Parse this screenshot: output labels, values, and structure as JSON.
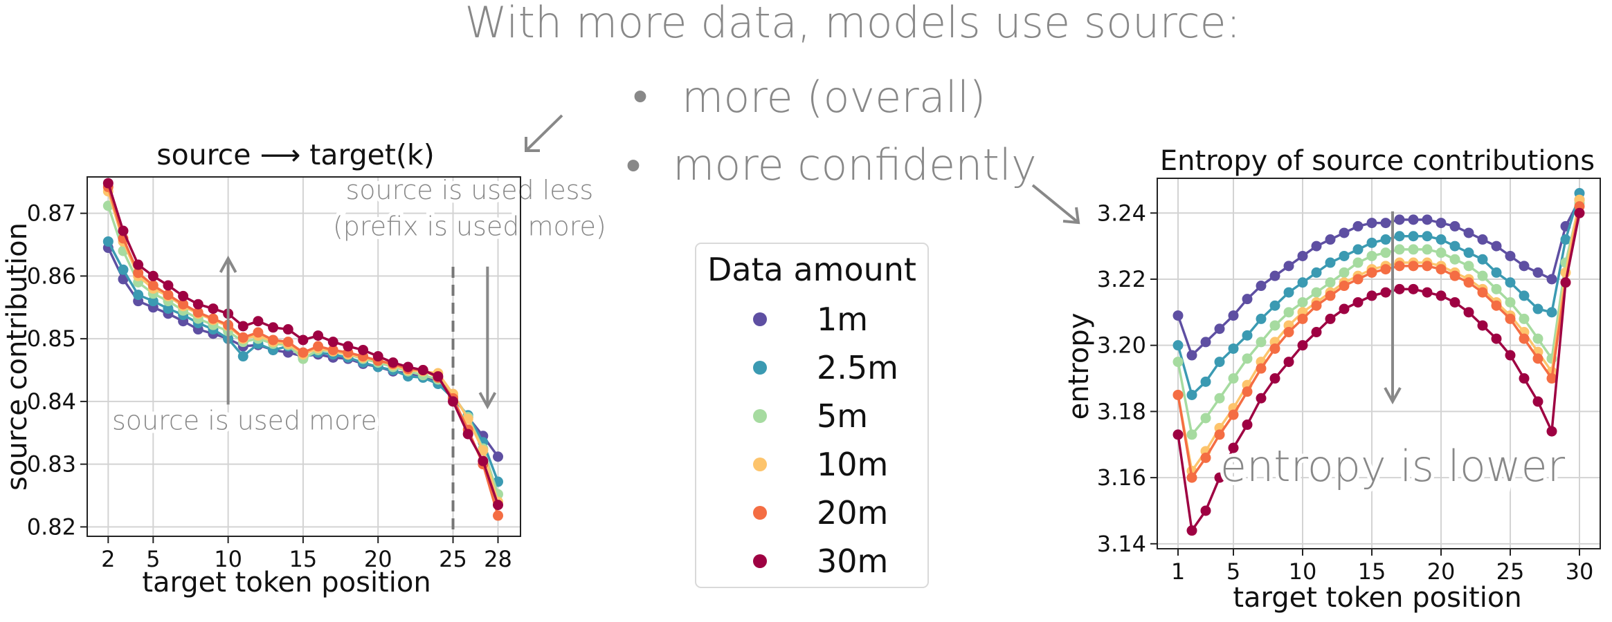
{
  "slide": {
    "headline": "With more data, models use source:",
    "bullets": [
      "more (overall)",
      "more confidently"
    ]
  },
  "legend": {
    "title": "Data amount",
    "entries": [
      {
        "label": "1m",
        "color": "#5E4FA2"
      },
      {
        "label": "2.5m",
        "color": "#3B9AB2"
      },
      {
        "label": "5m",
        "color": "#A6DBA0"
      },
      {
        "label": "10m",
        "color": "#FDC46C"
      },
      {
        "label": "20m",
        "color": "#F46D43"
      },
      {
        "label": "30m",
        "color": "#9E0142"
      }
    ]
  },
  "chart_data": [
    {
      "type": "line",
      "title": "source ⟶ target(k)",
      "xlabel": "target token position",
      "ylabel": "source contribution",
      "xticks": [
        2,
        5,
        10,
        15,
        20,
        25,
        28
      ],
      "yticks": [
        0.82,
        0.83,
        0.84,
        0.85,
        0.86,
        0.87
      ],
      "xlim": [
        0.6,
        29.5
      ],
      "ylim": [
        0.8185,
        0.8758
      ],
      "grid": true,
      "x": [
        2,
        3,
        4,
        5,
        6,
        7,
        8,
        9,
        10,
        11,
        12,
        13,
        14,
        15,
        16,
        17,
        18,
        19,
        20,
        21,
        22,
        23,
        24,
        25,
        26,
        27,
        28
      ],
      "series": [
        {
          "name": "1m",
          "color": "#5E4FA2",
          "values": [
            0.8645,
            0.8595,
            0.856,
            0.855,
            0.854,
            0.8528,
            0.8515,
            0.8508,
            0.85,
            0.8488,
            0.849,
            0.8482,
            0.8478,
            0.8472,
            0.8475,
            0.847,
            0.8468,
            0.846,
            0.8455,
            0.8448,
            0.8445,
            0.844,
            0.843,
            0.841,
            0.8375,
            0.8345,
            0.8312
          ]
        },
        {
          "name": "2.5m",
          "color": "#3B9AB2",
          "values": [
            0.8655,
            0.861,
            0.857,
            0.856,
            0.8548,
            0.8538,
            0.8525,
            0.8515,
            0.85,
            0.8472,
            0.8492,
            0.8482,
            0.8488,
            0.847,
            0.8478,
            0.8475,
            0.847,
            0.8462,
            0.8455,
            0.845,
            0.844,
            0.8438,
            0.8428,
            0.8405,
            0.8378,
            0.8335,
            0.8272
          ]
        },
        {
          "name": "5m",
          "color": "#A6DBA0",
          "values": [
            0.8712,
            0.864,
            0.859,
            0.8572,
            0.856,
            0.8545,
            0.8532,
            0.8522,
            0.8512,
            0.8495,
            0.85,
            0.8492,
            0.849,
            0.8468,
            0.8482,
            0.848,
            0.8475,
            0.8468,
            0.8462,
            0.8455,
            0.8448,
            0.8442,
            0.8435,
            0.841,
            0.8375,
            0.8325,
            0.8252
          ]
        },
        {
          "name": "10m",
          "color": "#FDC46C",
          "values": [
            0.8735,
            0.8655,
            0.86,
            0.858,
            0.8568,
            0.8552,
            0.854,
            0.853,
            0.852,
            0.85,
            0.8505,
            0.8495,
            0.8492,
            0.8475,
            0.8485,
            0.848,
            0.8475,
            0.847,
            0.8465,
            0.8458,
            0.845,
            0.8448,
            0.8445,
            0.8412,
            0.8372,
            0.8322,
            0.824
          ]
        },
        {
          "name": "20m",
          "color": "#F46D43",
          "values": [
            0.8742,
            0.866,
            0.8605,
            0.8585,
            0.857,
            0.8555,
            0.8542,
            0.8532,
            0.8522,
            0.8502,
            0.851,
            0.8498,
            0.8495,
            0.8478,
            0.8488,
            0.8482,
            0.8478,
            0.8472,
            0.8465,
            0.846,
            0.8452,
            0.845,
            0.8438,
            0.8405,
            0.8355,
            0.83,
            0.8218
          ]
        },
        {
          "name": "30m",
          "color": "#9E0142",
          "values": [
            0.8748,
            0.8672,
            0.8618,
            0.86,
            0.8585,
            0.8568,
            0.8555,
            0.8548,
            0.854,
            0.852,
            0.8528,
            0.8518,
            0.8515,
            0.8498,
            0.8505,
            0.8495,
            0.8488,
            0.8482,
            0.8472,
            0.8462,
            0.8455,
            0.845,
            0.844,
            0.84,
            0.8348,
            0.8305,
            0.8235
          ]
        }
      ],
      "vline": {
        "x": 25,
        "style": "dashed"
      },
      "annotations": [
        {
          "text": "source is used more",
          "x": 11.2,
          "y": 0.8355,
          "arrow": {
            "from": [
              10,
              0.8395
            ],
            "to": [
              10,
              0.8628
            ]
          }
        },
        {
          "text": "source is used less",
          "x": 26.1,
          "y": 0.8723
        },
        {
          "text": "(prefix is used more)",
          "x": 26.1,
          "y": 0.8665
        },
        {
          "arrow": {
            "from": [
              27.3,
              0.8615
            ],
            "to": [
              27.3,
              0.8392
            ]
          }
        }
      ]
    },
    {
      "type": "line",
      "title": "Entropy of source contributions",
      "xlabel": "target token position",
      "ylabel": "entropy",
      "xticks": [
        1,
        5,
        10,
        15,
        20,
        25,
        30
      ],
      "yticks": [
        3.14,
        3.16,
        3.18,
        3.2,
        3.22,
        3.24
      ],
      "xlim": [
        -0.5,
        31.5
      ],
      "ylim": [
        3.1385,
        3.2505
      ],
      "grid": true,
      "x": [
        1,
        2,
        3,
        4,
        5,
        6,
        7,
        8,
        9,
        10,
        11,
        12,
        13,
        14,
        15,
        16,
        17,
        18,
        19,
        20,
        21,
        22,
        23,
        24,
        25,
        26,
        27,
        28,
        29,
        30
      ],
      "series": [
        {
          "name": "1m",
          "color": "#5E4FA2",
          "values": [
            3.209,
            3.197,
            3.201,
            3.205,
            3.209,
            3.214,
            3.218,
            3.221,
            3.224,
            3.227,
            3.23,
            3.232,
            3.234,
            3.236,
            3.237,
            3.237,
            3.238,
            3.238,
            3.238,
            3.237,
            3.236,
            3.234,
            3.232,
            3.23,
            3.227,
            3.224,
            3.222,
            3.22,
            3.236,
            3.244
          ]
        },
        {
          "name": "2.5m",
          "color": "#3B9AB2",
          "values": [
            3.2,
            3.185,
            3.189,
            3.195,
            3.199,
            3.203,
            3.208,
            3.212,
            3.216,
            3.219,
            3.222,
            3.225,
            3.227,
            3.229,
            3.231,
            3.232,
            3.233,
            3.233,
            3.233,
            3.232,
            3.23,
            3.228,
            3.226,
            3.222,
            3.219,
            3.215,
            3.211,
            3.21,
            3.232,
            3.246
          ]
        },
        {
          "name": "5m",
          "color": "#A6DBA0",
          "values": [
            3.195,
            3.173,
            3.178,
            3.184,
            3.19,
            3.196,
            3.201,
            3.206,
            3.21,
            3.213,
            3.216,
            3.219,
            3.222,
            3.225,
            3.227,
            3.228,
            3.229,
            3.229,
            3.229,
            3.228,
            3.226,
            3.224,
            3.221,
            3.217,
            3.213,
            3.208,
            3.202,
            3.196,
            3.225,
            3.243
          ]
        },
        {
          "name": "10m",
          "color": "#FDC46C",
          "values": [
            3.185,
            3.162,
            3.168,
            3.175,
            3.181,
            3.188,
            3.195,
            3.201,
            3.206,
            3.21,
            3.213,
            3.216,
            3.219,
            3.221,
            3.223,
            3.224,
            3.225,
            3.225,
            3.225,
            3.224,
            3.222,
            3.22,
            3.217,
            3.213,
            3.209,
            3.204,
            3.198,
            3.192,
            3.222,
            3.244
          ]
        },
        {
          "name": "20m",
          "color": "#F46D43",
          "values": [
            3.185,
            3.16,
            3.166,
            3.173,
            3.179,
            3.186,
            3.193,
            3.199,
            3.204,
            3.208,
            3.212,
            3.215,
            3.218,
            3.22,
            3.222,
            3.223,
            3.224,
            3.224,
            3.224,
            3.223,
            3.221,
            3.219,
            3.216,
            3.212,
            3.208,
            3.202,
            3.196,
            3.19,
            3.219,
            3.242
          ]
        },
        {
          "name": "30m",
          "color": "#9E0142",
          "values": [
            3.173,
            3.144,
            3.15,
            3.16,
            3.169,
            3.176,
            3.184,
            3.19,
            3.195,
            3.2,
            3.204,
            3.208,
            3.211,
            3.213,
            3.215,
            3.216,
            3.217,
            3.217,
            3.216,
            3.215,
            3.213,
            3.21,
            3.206,
            3.202,
            3.197,
            3.19,
            3.183,
            3.174,
            3.219,
            3.24
          ]
        }
      ],
      "annotations": [
        {
          "text": "entropy is lower",
          "x": 16.5,
          "y": 3.159,
          "arrow": {
            "from": [
              16.5,
              3.2405
            ],
            "to": [
              16.5,
              3.183
            ]
          }
        }
      ]
    }
  ]
}
